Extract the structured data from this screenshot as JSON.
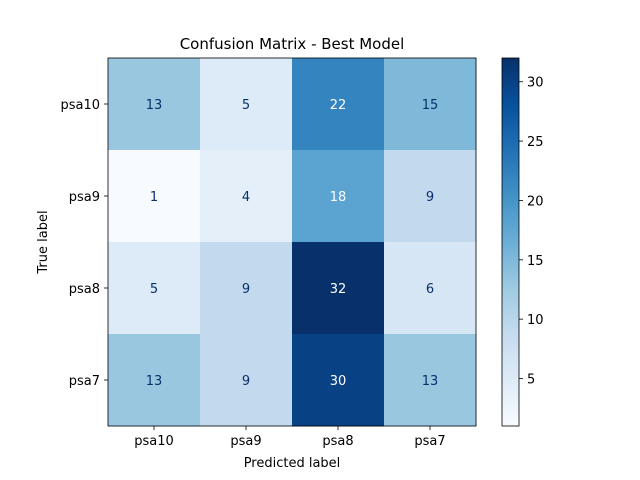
{
  "chart_data": {
    "type": "heatmap",
    "title": "Confusion Matrix - Best Model",
    "xlabel": "Predicted label",
    "ylabel": "True label",
    "x_categories": [
      "psa10",
      "psa9",
      "psa8",
      "psa7"
    ],
    "y_categories": [
      "psa10",
      "psa9",
      "psa8",
      "psa7"
    ],
    "values": [
      [
        13,
        5,
        22,
        15
      ],
      [
        1,
        4,
        18,
        9
      ],
      [
        5,
        9,
        32,
        6
      ],
      [
        13,
        9,
        30,
        13
      ]
    ],
    "colormap": "Blues",
    "color_range": [
      1,
      32
    ],
    "colorbar_ticks": [
      5,
      10,
      15,
      20,
      25,
      30
    ],
    "text_color_light": "#ffffff",
    "text_color_dark": "#08306b"
  }
}
